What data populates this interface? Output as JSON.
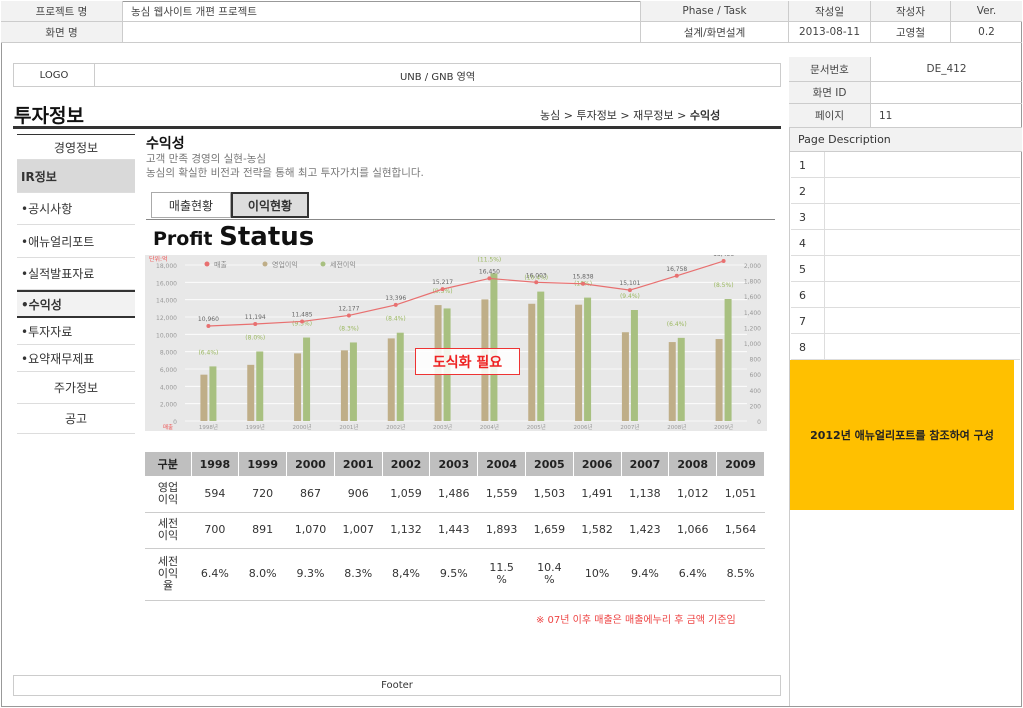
{
  "header": {
    "project_label": "프로젝트 명",
    "project_value": "농심 웹사이트 개편 프로젝트",
    "screen_label": "화면 명",
    "screen_value": "",
    "phase_label": "Phase / Task",
    "phase_value": "설계/화면설계",
    "date_label": "작성일",
    "date_value": "2013-08-11",
    "author_label": "작성자",
    "author_value": "고영철",
    "ver_label": "Ver.",
    "ver_value": "0.2",
    "docno_label": "문서번호",
    "docno_value": "DE_412",
    "screenid_label": "화면 ID",
    "screenid_value": "",
    "page_label": "페이지",
    "page_value": "11"
  },
  "logo": "LOGO",
  "gnb": "UNB / GNB 영역",
  "page_title": "투자정보",
  "breadcrumb": {
    "path": "농심 > 투자정보 > 재무정보 > ",
    "current": "수익성"
  },
  "sidebar": {
    "items": [
      {
        "label": "경영정보",
        "style": "center"
      },
      {
        "label": "IR정보",
        "style": "active"
      },
      {
        "label": "•공시사항"
      },
      {
        "label": "•애뉴얼리포트"
      },
      {
        "label": "•실적발표자료"
      },
      {
        "label": "•수익성",
        "style": "selected"
      },
      {
        "label": "•투자자료"
      },
      {
        "label": "•요약재무제표"
      },
      {
        "label": "주가정보",
        "style": "center"
      },
      {
        "label": "공고",
        "style": "center"
      }
    ]
  },
  "content": {
    "heading": "수익성",
    "sub1": "고객 만족 경영의 실현-농심",
    "sub2": "농심의 확실한 비전과 전략을 통해 최고 투자가치를 실현합니다.",
    "tabs": [
      {
        "label": "매출현황",
        "active": false
      },
      {
        "label": "이익현황",
        "active": true
      }
    ],
    "big_title_a": "Profit ",
    "big_title_b": "Status",
    "placeholder_note": "도식화 필요",
    "footnote": "※ 07년 이후 매출은 매출에누리 후 금액 기준임"
  },
  "chart_data": {
    "type": "bar",
    "unit_label": "단위:억",
    "legend": [
      "매출",
      "영업이익",
      "세전이익"
    ],
    "categories": [
      "1998년",
      "1999년",
      "2000년",
      "2001년",
      "2002년",
      "2003년",
      "2004년",
      "2005년",
      "2006년",
      "2007년",
      "2008년",
      "2009년"
    ],
    "x_axis_tag": "매출",
    "left_axis_ticks": [
      "18,000",
      "16,000",
      "14,000",
      "12,000",
      "10,000",
      "8,000",
      "6,000",
      "4,000",
      "2,000",
      "0"
    ],
    "right_axis_ticks": [
      "2,000",
      "1,800",
      "1,600",
      "1,400",
      "1,200",
      "1,000",
      "800",
      "600",
      "400",
      "200",
      "0"
    ],
    "ylim_left": [
      0,
      18000
    ],
    "ylim_right": [
      0,
      2000
    ],
    "series": [
      {
        "name": "매출",
        "values": [
          10960,
          11194,
          11485,
          12177,
          13396,
          15217,
          16450,
          16003,
          15838,
          15101,
          16758,
          18456
        ],
        "labels": [
          "10,960",
          "11,194",
          "11,485",
          "12,177",
          "13,396",
          "15,217",
          "16,450",
          "16,003",
          "15,838",
          "15,101",
          "16,758",
          "18,456"
        ]
      },
      {
        "name": "영업이익",
        "values": [
          594,
          720,
          867,
          906,
          1059,
          1486,
          1559,
          1503,
          1491,
          1138,
          1012,
          1051
        ]
      },
      {
        "name": "세전이익",
        "values": [
          700,
          891,
          1070,
          1007,
          1132,
          1443,
          1893,
          1659,
          1582,
          1423,
          1066,
          1564
        ]
      }
    ],
    "ratio_labels": [
      "(6.4%)",
      "(8.0%)",
      "(9.3%)",
      "(8.3%)",
      "(8.4%)",
      "(9.5%)",
      "(11.5%)",
      "(10.4%)",
      "(10%)",
      "(9.4%)",
      "(6.4%)",
      "(8.5%)"
    ],
    "colors": {
      "sales": "#e87070",
      "op": "#bfae88",
      "pre": "#a8c080"
    }
  },
  "table": {
    "headers": [
      "구분",
      "1998",
      "1999",
      "2000",
      "2001",
      "2002",
      "2003",
      "2004",
      "2005",
      "2006",
      "2007",
      "2008",
      "2009"
    ],
    "rows": [
      [
        "영업\n이익",
        "594",
        "720",
        "867",
        "906",
        "1,059",
        "1,486",
        "1,559",
        "1,503",
        "1,491",
        "1,138",
        "1,012",
        "1,051"
      ],
      [
        "세전\n이익",
        "700",
        "891",
        "1,070",
        "1,007",
        "1,132",
        "1,443",
        "1,893",
        "1,659",
        "1,582",
        "1,423",
        "1,066",
        "1,564"
      ],
      [
        "세전\n이익\n율",
        "6.4%",
        "8.0%",
        "9.3%",
        "8.3%",
        "8,4%",
        "9.5%",
        "11.5\n%",
        "10.4\n%",
        "10%",
        "9.4%",
        "6.4%",
        "8.5%"
      ]
    ]
  },
  "page_description": {
    "title": "Page Description",
    "rows": [
      "1",
      "2",
      "3",
      "4",
      "5",
      "6",
      "7",
      "8"
    ],
    "note": "2012년 애뉴얼리포트를 참조하여 구성",
    "note_color": "#ffc000"
  },
  "footer": "Footer"
}
